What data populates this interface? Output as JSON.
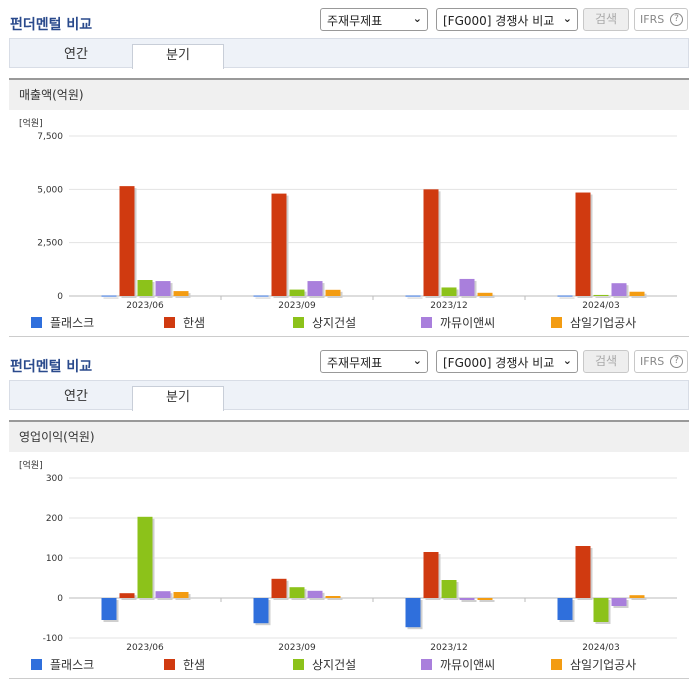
{
  "panels": [
    {
      "title": "펀더멘털 비교",
      "select1": "주재무제표",
      "select2": "[FG000] 경쟁사 비교",
      "search_btn": "검색",
      "ifrs_btn": "IFRS",
      "tabs": [
        "연간",
        "분기"
      ],
      "metric_label": "매출액(억원)"
    },
    {
      "title": "펀더멘털 비교",
      "select1": "주재무제표",
      "select2": "[FG000] 경쟁사 비교",
      "search_btn": "검색",
      "ifrs_btn": "IFRS",
      "tabs": [
        "연간",
        "분기"
      ],
      "metric_label": "영업이익(억원)"
    }
  ],
  "colors": [
    "#2f6fdc",
    "#d03a10",
    "#8cc21a",
    "#a97fdc",
    "#f39c12"
  ],
  "chart_data": [
    {
      "type": "bar",
      "unit": "[억원]",
      "categories": [
        "2023/06",
        "2023/09",
        "2023/12",
        "2024/03"
      ],
      "ylim": [
        0,
        7500
      ],
      "yticks": [
        0,
        2500,
        5000,
        7500
      ],
      "ytick_labels": [
        "0",
        "2,500",
        "5,000",
        "7,500"
      ],
      "series": [
        {
          "name": "플래스크",
          "values": [
            20,
            20,
            20,
            20
          ]
        },
        {
          "name": "한샘",
          "values": [
            5150,
            4800,
            5000,
            4850
          ]
        },
        {
          "name": "상지건설",
          "values": [
            750,
            300,
            400,
            50
          ]
        },
        {
          "name": "까뮤이앤씨",
          "values": [
            700,
            700,
            800,
            600
          ]
        },
        {
          "name": "삼일기업공사",
          "values": [
            230,
            290,
            150,
            200
          ]
        }
      ]
    },
    {
      "type": "bar",
      "unit": "[억원]",
      "categories": [
        "2023/06",
        "2023/09",
        "2023/12",
        "2024/03"
      ],
      "ylim": [
        -100,
        300
      ],
      "yticks": [
        -100,
        0,
        100,
        200,
        300
      ],
      "ytick_labels": [
        "-100",
        "0",
        "100",
        "200",
        "300"
      ],
      "series": [
        {
          "name": "플래스크",
          "values": [
            -55,
            -63,
            -73,
            -55
          ]
        },
        {
          "name": "한샘",
          "values": [
            12,
            48,
            115,
            130
          ]
        },
        {
          "name": "상지건설",
          "values": [
            203,
            27,
            45,
            -60
          ]
        },
        {
          "name": "까뮤이앤씨",
          "values": [
            17,
            18,
            -5,
            -20
          ]
        },
        {
          "name": "삼일기업공사",
          "values": [
            15,
            5,
            -5,
            7
          ]
        }
      ]
    }
  ]
}
